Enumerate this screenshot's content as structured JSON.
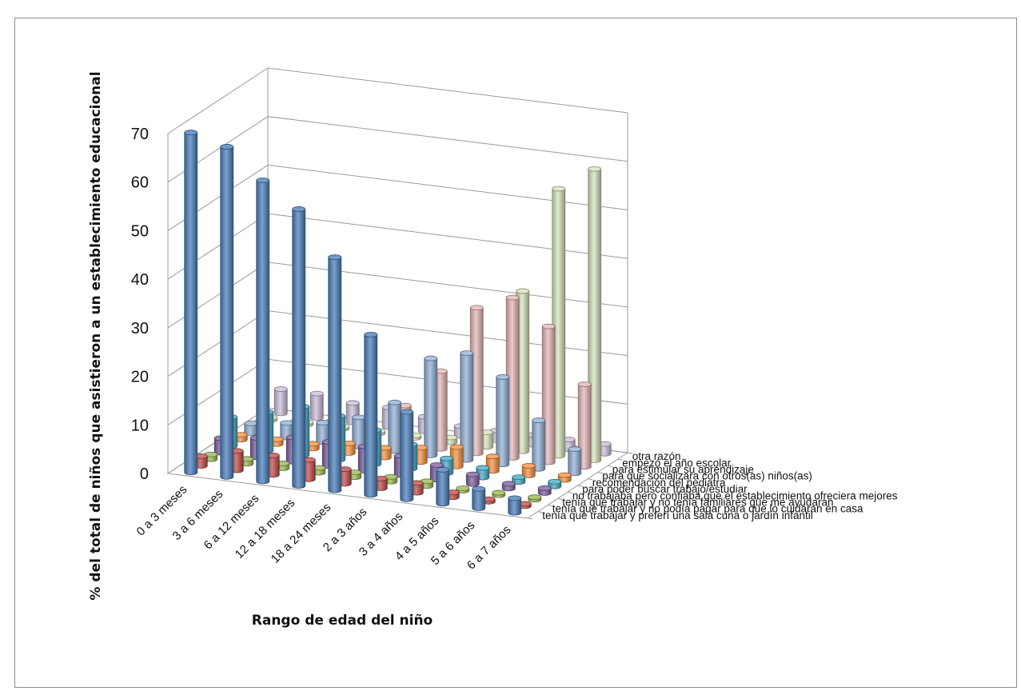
{
  "chart_data": {
    "type": "bar",
    "subtype": "3d-cylinder",
    "title": "",
    "xlabel": "Rango de edad del niño",
    "ylabel": "% del total de niños que asistieron a un establecimiento educacional",
    "ylim": [
      0,
      70
    ],
    "yticks": [
      0,
      10,
      20,
      30,
      40,
      50,
      60,
      70
    ],
    "grid": true,
    "categories": [
      "0 a 3 meses",
      "3 a 6 meses",
      "6 a 12 meses",
      "12 a 18 meses",
      "18 a 24 meses",
      "2 a 3 años",
      "3 a 4 años",
      "4 a 5 años",
      "5 a 6 años",
      "6 a 7 años"
    ],
    "series": [
      {
        "name": "tenía que trabajar y preferí una sala cuna o jardín infantil",
        "color": "#4F81BD",
        "values": [
          70,
          68,
          62,
          57,
          48,
          33,
          18,
          7,
          4,
          3
        ]
      },
      {
        "name": "tenía que trabajar y no podía pagar para que lo cuidaran en casa",
        "color": "#C0504D",
        "values": [
          2,
          4,
          4,
          4,
          3,
          2,
          2,
          1,
          0.5,
          0.5
        ]
      },
      {
        "name": "tenía que trabajar y no tenía familiares que me ayudaran",
        "color": "#9BBB59",
        "values": [
          1,
          1,
          1,
          1,
          1,
          1,
          1,
          0.5,
          0.5,
          0.5
        ]
      },
      {
        "name": "no trabajaba pero confiaba que el establecimiento ofreciera mejores",
        "color": "#8064A2",
        "values": [
          3,
          4,
          5,
          5,
          5,
          4,
          3,
          2,
          1,
          1
        ]
      },
      {
        "name": "para poder buscar trabajo/estudiar",
        "color": "#4BACC6",
        "values": [
          6,
          8,
          10,
          9,
          7,
          5,
          3,
          2,
          1,
          1
        ]
      },
      {
        "name": "recomendación del pediatra",
        "color": "#F79646",
        "values": [
          1,
          1,
          1,
          2,
          2,
          3,
          4,
          3,
          2,
          1
        ]
      },
      {
        "name": "para que socializara con otros(as) niños(as)",
        "color": "#95B3D7",
        "values": [
          2,
          3,
          4,
          6,
          10,
          20,
          22,
          18,
          10,
          5
        ]
      },
      {
        "name": "para estimular su aprendizaje",
        "color": "#E6B9B8",
        "values": [
          1,
          2,
          3,
          4,
          8,
          16,
          30,
          33,
          28,
          17
        ]
      },
      {
        "name": "empezó el año escolar",
        "color": "#D7E4BD",
        "values": [
          0.5,
          0.5,
          0.5,
          0.5,
          0.5,
          1,
          3,
          33,
          55,
          60
        ]
      },
      {
        "name": "otra razón",
        "color": "#CCC1DA",
        "values": [
          5,
          5,
          4,
          4,
          3,
          2,
          2,
          2,
          2,
          2
        ]
      }
    ]
  }
}
